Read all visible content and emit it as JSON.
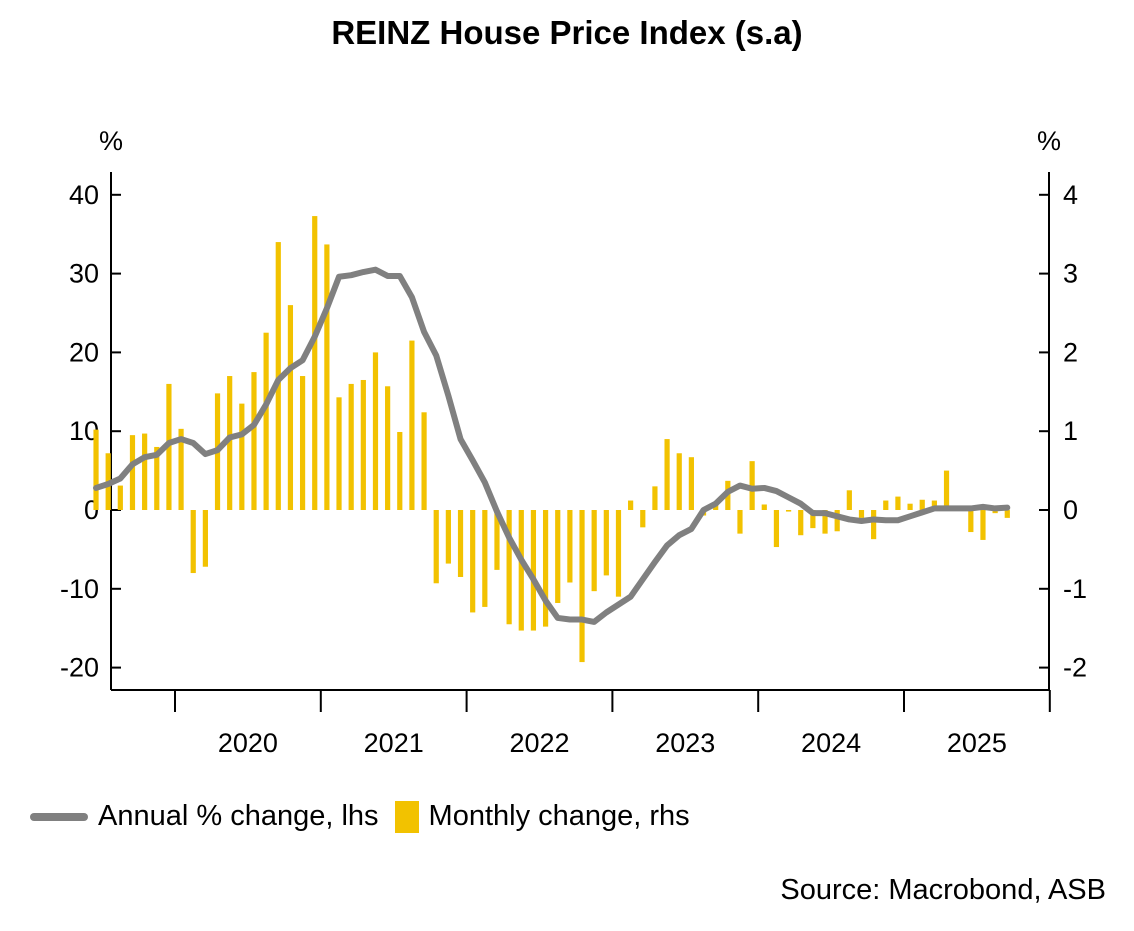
{
  "title": "REINZ House Price Index (s.a)",
  "source": "Source: Macrobond, ASB",
  "colors": {
    "line": "#808080",
    "bars": "#F2C200",
    "axis": "#000000"
  },
  "chart_data": {
    "type": "bar+line",
    "title": "REINZ House Price Index (s.a)",
    "y_left": {
      "unit": "%",
      "range": [
        -23,
        44
      ],
      "ticks": [
        -20,
        -10,
        0,
        10,
        20,
        30,
        40
      ],
      "tick_labels": [
        "-20",
        "-10",
        "0",
        "10",
        "20",
        "30",
        "40"
      ]
    },
    "y_right": {
      "unit": "%",
      "range": [
        -2.3,
        4.4
      ],
      "ticks": [
        -2,
        -1,
        0,
        1,
        2,
        3,
        4
      ],
      "tick_labels": [
        "-2",
        "-1",
        "0",
        "1",
        "2",
        "3",
        "4"
      ]
    },
    "x_axis": {
      "range": [
        "2019-06",
        "2025-11"
      ],
      "year_labels": [
        "2020",
        "2021",
        "2022",
        "2023",
        "2024",
        "2025"
      ]
    },
    "grid": false,
    "legend_position": "bottom-left",
    "series": [
      {
        "name": "Annual % change, lhs",
        "axis": "left",
        "chart_kind": "line",
        "x": [
          "2019-06",
          "2019-07",
          "2019-08",
          "2019-09",
          "2019-10",
          "2019-11",
          "2019-12",
          "2020-01",
          "2020-02",
          "2020-03",
          "2020-04",
          "2020-05",
          "2020-06",
          "2020-07",
          "2020-08",
          "2020-09",
          "2020-10",
          "2020-11",
          "2020-12",
          "2021-01",
          "2021-02",
          "2021-03",
          "2021-04",
          "2021-05",
          "2021-06",
          "2021-07",
          "2021-08",
          "2021-09",
          "2021-10",
          "2021-11",
          "2021-12",
          "2022-01",
          "2022-02",
          "2022-03",
          "2022-04",
          "2022-05",
          "2022-06",
          "2022-07",
          "2022-08",
          "2022-09",
          "2022-10",
          "2022-11",
          "2022-12",
          "2023-01",
          "2023-02",
          "2023-03",
          "2023-04",
          "2023-05",
          "2023-06",
          "2023-07",
          "2023-08",
          "2023-09",
          "2023-10",
          "2023-11",
          "2023-12",
          "2024-01",
          "2024-02",
          "2024-03",
          "2024-04",
          "2024-05",
          "2024-06",
          "2024-07",
          "2024-08",
          "2024-09",
          "2024-10",
          "2024-11",
          "2024-12",
          "2025-01",
          "2025-02",
          "2025-03",
          "2025-04",
          "2025-05",
          "2025-06",
          "2025-07",
          "2025-08",
          "2025-09"
        ],
        "values": [
          2.8,
          3.3,
          4,
          5.8,
          6.7,
          7,
          8.5,
          9,
          8.5,
          7.1,
          7.6,
          9.2,
          9.6,
          10.8,
          13.4,
          16.5,
          18,
          19,
          22,
          25.6,
          29.6,
          29.8,
          30.2,
          30.5,
          29.7,
          29.7,
          27,
          22.6,
          19.6,
          14.5,
          9,
          6.3,
          3.5,
          -0.2,
          -3.5,
          -6.3,
          -8.8,
          -11.5,
          -13.7,
          -13.9,
          -13.9,
          -14.2,
          -13,
          -12,
          -11,
          -8.8,
          -6.6,
          -4.5,
          -3.2,
          -2.4,
          0,
          0.8,
          2.3,
          3.1,
          2.7,
          2.8,
          2.4,
          1.6,
          0.8,
          -0.4,
          -0.4,
          -0.8,
          -1.2,
          -1.4,
          -1.2,
          -1.3,
          -1.3,
          -0.8,
          -0.3,
          0.2,
          0.2,
          0.2,
          0.2,
          0.4,
          0.2,
          0.3
        ]
      },
      {
        "name": "Monthly change, rhs",
        "axis": "right",
        "chart_kind": "bar",
        "x": [
          "2019-06",
          "2019-07",
          "2019-08",
          "2019-09",
          "2019-10",
          "2019-11",
          "2019-12",
          "2020-01",
          "2020-02",
          "2020-03",
          "2020-04",
          "2020-05",
          "2020-06",
          "2020-07",
          "2020-08",
          "2020-09",
          "2020-10",
          "2020-11",
          "2020-12",
          "2021-01",
          "2021-02",
          "2021-03",
          "2021-04",
          "2021-05",
          "2021-06",
          "2021-07",
          "2021-08",
          "2021-09",
          "2021-10",
          "2021-11",
          "2021-12",
          "2022-01",
          "2022-02",
          "2022-03",
          "2022-04",
          "2022-05",
          "2022-06",
          "2022-07",
          "2022-08",
          "2022-09",
          "2022-10",
          "2022-11",
          "2022-12",
          "2023-01",
          "2023-02",
          "2023-03",
          "2023-04",
          "2023-05",
          "2023-06",
          "2023-07",
          "2023-08",
          "2023-09",
          "2023-10",
          "2023-11",
          "2023-12",
          "2024-01",
          "2024-02",
          "2024-03",
          "2024-04",
          "2024-05",
          "2024-06",
          "2024-07",
          "2024-08",
          "2024-09",
          "2024-10",
          "2024-11",
          "2024-12",
          "2025-01",
          "2025-02",
          "2025-03",
          "2025-04",
          "2025-05",
          "2025-06",
          "2025-07",
          "2025-08",
          "2025-09"
        ],
        "values": [
          1.02,
          0.72,
          0.31,
          0.95,
          0.97,
          0.8,
          1.6,
          1.03,
          -0.8,
          -0.72,
          1.48,
          1.7,
          1.35,
          1.75,
          2.25,
          3.4,
          2.6,
          1.7,
          3.73,
          3.37,
          1.43,
          1.6,
          1.65,
          2,
          1.57,
          0.99,
          2.15,
          1.24,
          -0.93,
          -0.68,
          -0.85,
          -1.3,
          -1.23,
          -0.76,
          -1.45,
          -1.53,
          -1.53,
          -1.48,
          -1.18,
          -0.92,
          -1.93,
          -1.03,
          -0.83,
          -1.1,
          0.12,
          -0.22,
          0.3,
          0.9,
          0.72,
          0.67,
          -0.07,
          0.1,
          0.37,
          -0.3,
          0.62,
          0.07,
          -0.47,
          -0.02,
          -0.32,
          -0.23,
          -0.3,
          -0.27,
          0.25,
          -0.1,
          -0.37,
          0.12,
          0.17,
          0.08,
          0.13,
          0.12,
          0.5,
          0.02,
          -0.28,
          -0.38,
          -0.04,
          -0.1
        ]
      }
    ]
  },
  "legend": {
    "line_label": "Annual % change, lhs",
    "bar_label": "Monthly change, rhs"
  }
}
